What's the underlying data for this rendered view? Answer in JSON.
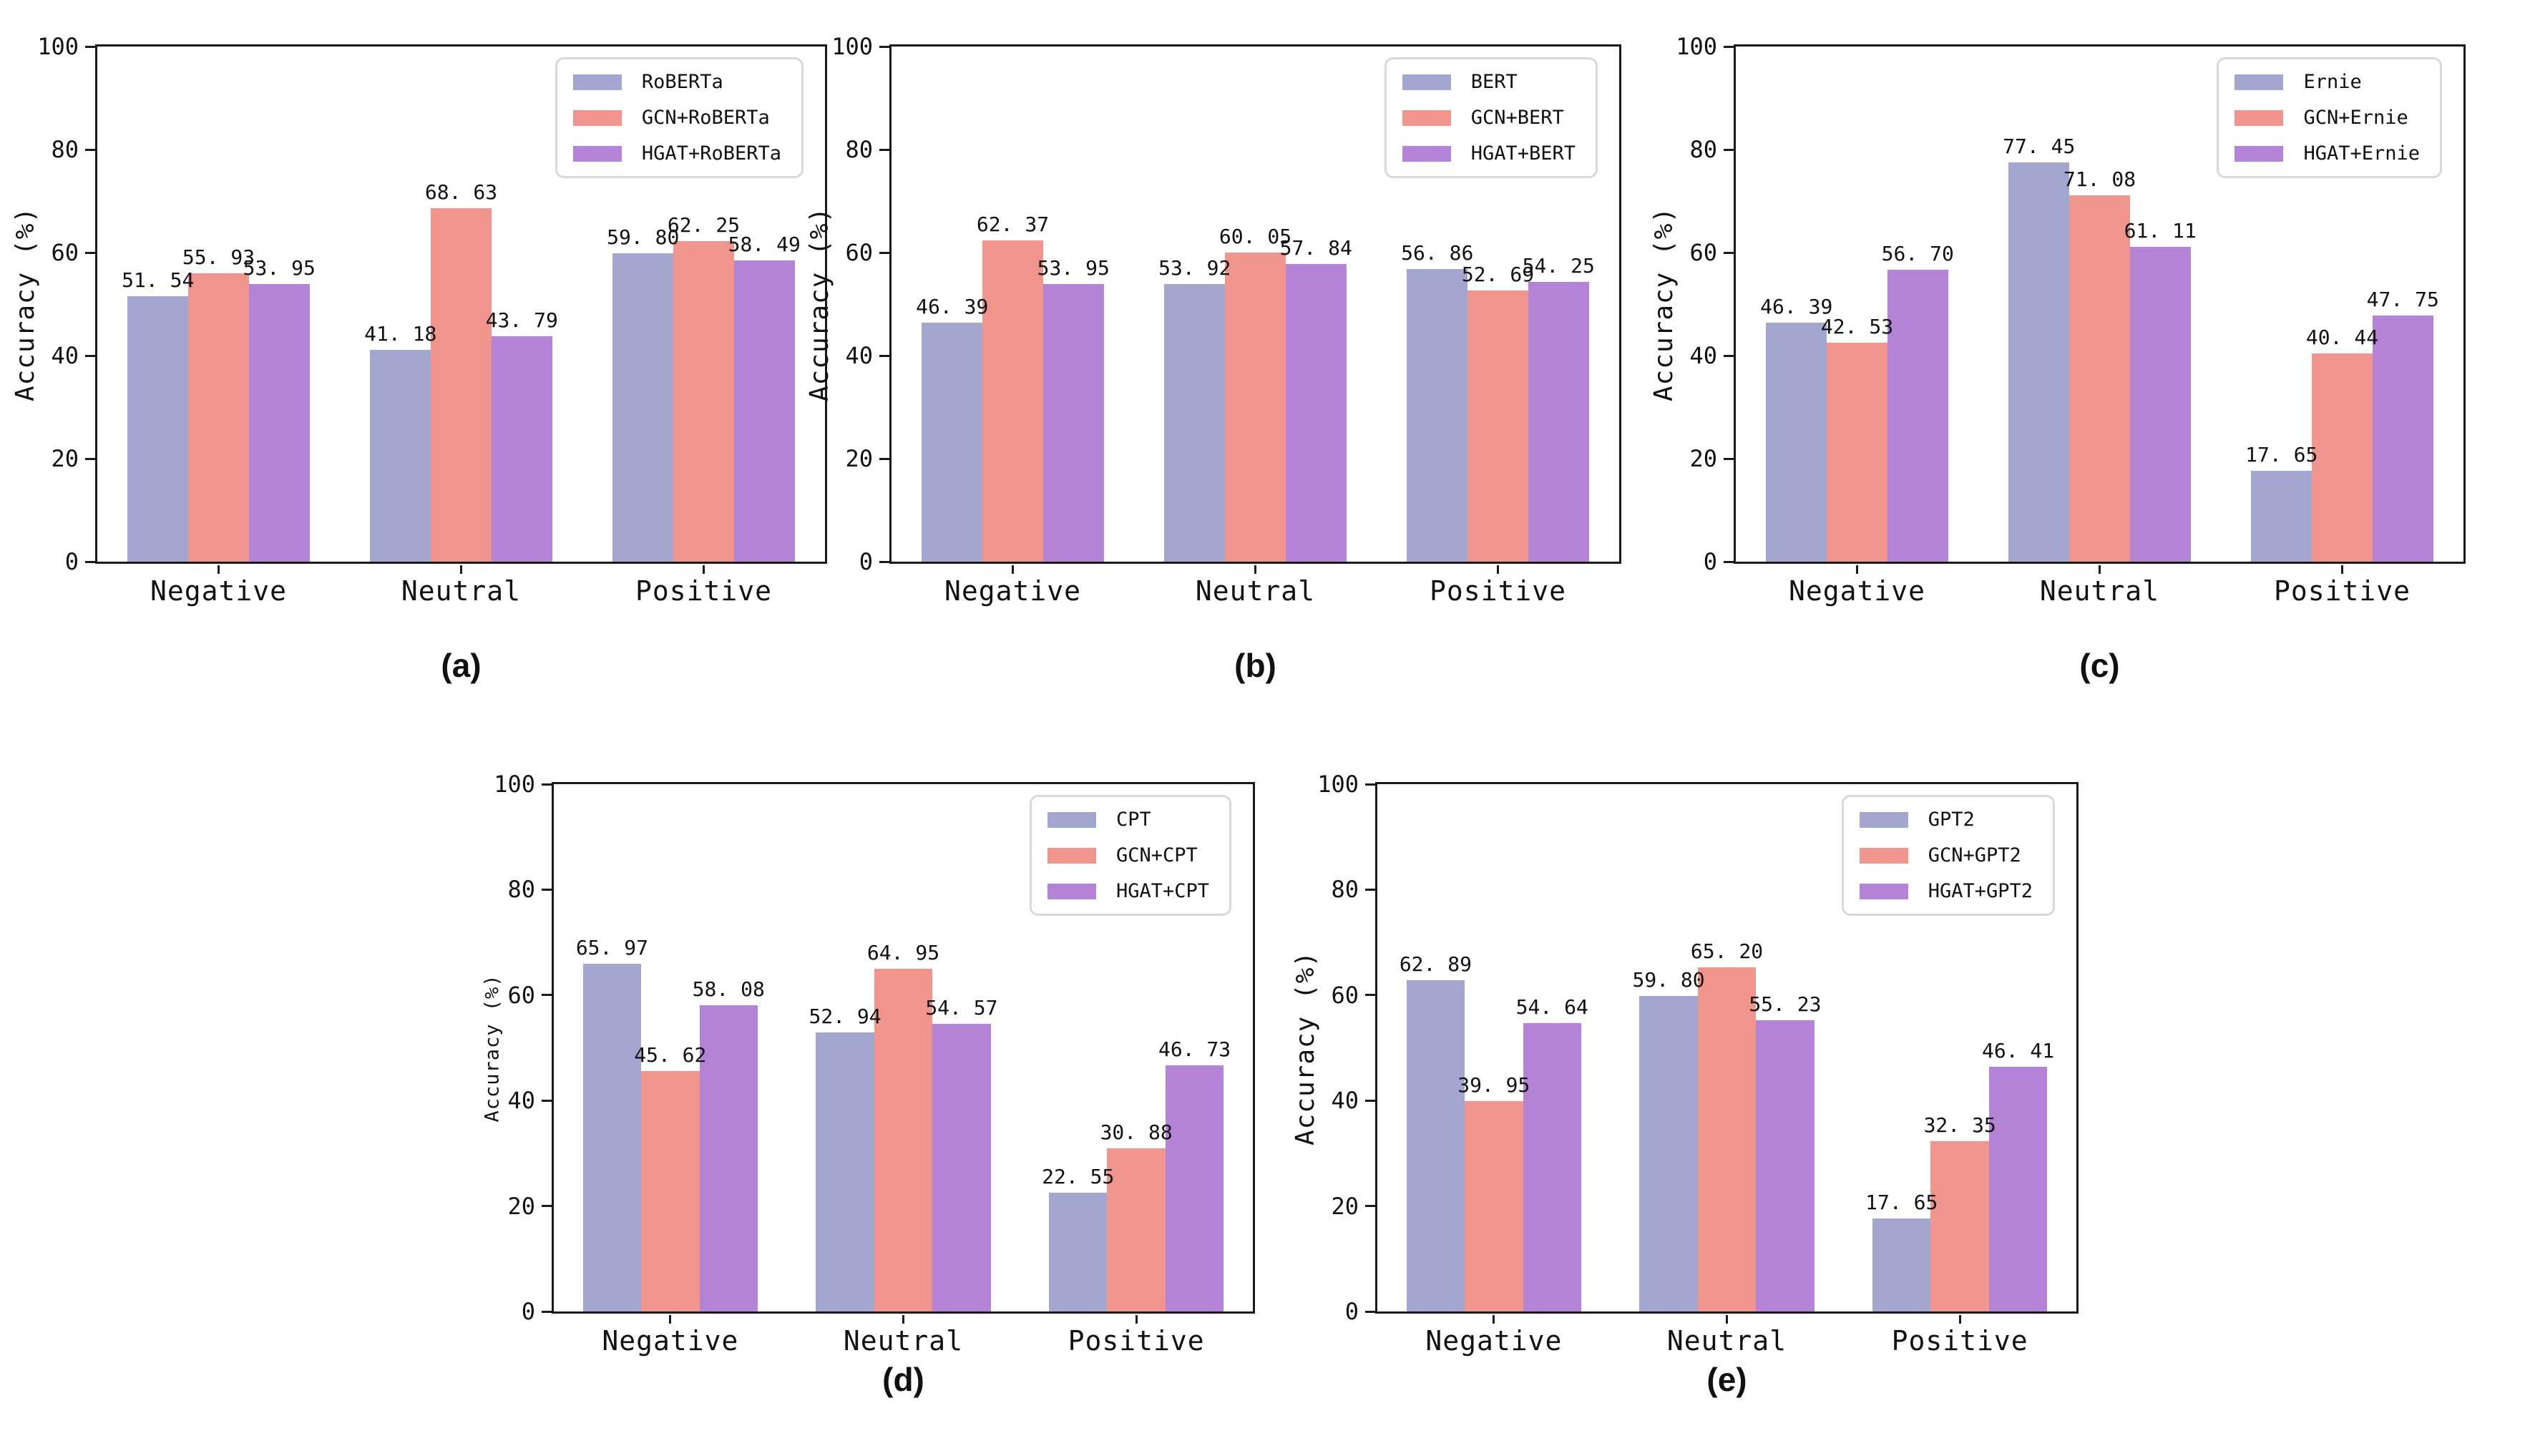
{
  "figure": {
    "background": "#ffffff",
    "colors": {
      "base": "#a3a7cf",
      "gcn": "#f0948e",
      "hgat": "#b583d5"
    },
    "axis_color": "#1a1a1a"
  },
  "chart_data": [
    {
      "id": "a",
      "type": "bar",
      "caption": "(a)",
      "title": "",
      "xlabel": "",
      "ylabel": "Accuracy (%)",
      "ylim": [
        0,
        100
      ],
      "yticks": [
        0,
        20,
        40,
        60,
        80,
        100
      ],
      "grid": false,
      "legend_position": "upper right",
      "categories": [
        "Negative",
        "Neutral",
        "Positive"
      ],
      "series": [
        {
          "name": "RoBERTa",
          "color": "#a3a7cf",
          "values": [
            51.54,
            41.18,
            59.8
          ]
        },
        {
          "name": "GCN+RoBERTa",
          "color": "#f0948e",
          "values": [
            55.93,
            68.63,
            62.25
          ]
        },
        {
          "name": "HGAT+RoBERTa",
          "color": "#b583d5",
          "values": [
            53.95,
            43.79,
            58.49
          ]
        }
      ]
    },
    {
      "id": "b",
      "type": "bar",
      "caption": "(b)",
      "title": "",
      "xlabel": "",
      "ylabel": "Accuracy (%)",
      "ylim": [
        0,
        100
      ],
      "yticks": [
        0,
        20,
        40,
        60,
        80,
        100
      ],
      "grid": false,
      "legend_position": "upper right",
      "categories": [
        "Negative",
        "Neutral",
        "Positive"
      ],
      "series": [
        {
          "name": "BERT",
          "color": "#a3a7cf",
          "values": [
            46.39,
            53.92,
            56.86
          ]
        },
        {
          "name": "GCN+BERT",
          "color": "#f0948e",
          "values": [
            62.37,
            60.05,
            52.69
          ]
        },
        {
          "name": "HGAT+BERT",
          "color": "#b583d5",
          "values": [
            53.95,
            57.84,
            54.25
          ]
        }
      ]
    },
    {
      "id": "c",
      "type": "bar",
      "caption": "(c)",
      "title": "",
      "xlabel": "",
      "ylabel": "Accuracy (%)",
      "ylim": [
        0,
        100
      ],
      "yticks": [
        0,
        20,
        40,
        60,
        80,
        100
      ],
      "grid": false,
      "legend_position": "upper right",
      "categories": [
        "Negative",
        "Neutral",
        "Positive"
      ],
      "series": [
        {
          "name": "Ernie",
          "color": "#a3a7cf",
          "values": [
            46.39,
            77.45,
            17.65
          ]
        },
        {
          "name": "GCN+Ernie",
          "color": "#f0948e",
          "values": [
            42.53,
            71.08,
            40.44
          ]
        },
        {
          "name": "HGAT+Ernie",
          "color": "#b583d5",
          "values": [
            56.7,
            61.11,
            47.75
          ]
        }
      ]
    },
    {
      "id": "d",
      "type": "bar",
      "caption": "(d)",
      "title": "",
      "xlabel": "",
      "ylabel": "Accuracy (%)",
      "ylim": [
        0,
        100
      ],
      "yticks": [
        0,
        20,
        40,
        60,
        80,
        100
      ],
      "grid": false,
      "legend_position": "upper right",
      "categories": [
        "Negative",
        "Neutral",
        "Positive"
      ],
      "series": [
        {
          "name": "CPT",
          "color": "#a3a7cf",
          "values": [
            65.97,
            52.94,
            22.55
          ]
        },
        {
          "name": "GCN+CPT",
          "color": "#f0948e",
          "values": [
            45.62,
            64.95,
            30.88
          ]
        },
        {
          "name": "HGAT+CPT",
          "color": "#b583d5",
          "values": [
            58.08,
            54.57,
            46.73
          ]
        }
      ]
    },
    {
      "id": "e",
      "type": "bar",
      "caption": "(e)",
      "title": "",
      "xlabel": "",
      "ylabel": "Accuracy (%)",
      "ylim": [
        0,
        100
      ],
      "yticks": [
        0,
        20,
        40,
        60,
        80,
        100
      ],
      "grid": false,
      "legend_position": "upper right",
      "categories": [
        "Negative",
        "Neutral",
        "Positive"
      ],
      "series": [
        {
          "name": "GPT2",
          "color": "#a3a7cf",
          "values": [
            62.89,
            59.8,
            17.65
          ]
        },
        {
          "name": "GCN+GPT2",
          "color": "#f0948e",
          "values": [
            39.95,
            65.2,
            32.35
          ]
        },
        {
          "name": "HGAT+GPT2",
          "color": "#b583d5",
          "values": [
            54.64,
            55.23,
            46.41
          ]
        }
      ]
    }
  ]
}
